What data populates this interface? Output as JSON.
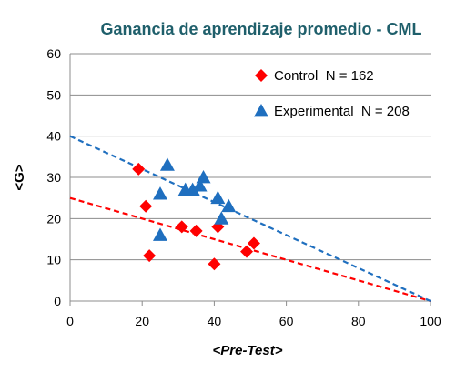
{
  "chart_data": {
    "type": "scatter",
    "title": "Ganancia de aprendizaje promedio - CML",
    "xlabel": "<Pre-Test>",
    "ylabel": "<G>",
    "xlim": [
      0,
      100
    ],
    "ylim": [
      0,
      60
    ],
    "xticks": [
      "0",
      "20",
      "40",
      "60",
      "80",
      "100"
    ],
    "yticks": [
      "0",
      "10",
      "20",
      "30",
      "40",
      "50",
      "60"
    ],
    "grid": "horizontal",
    "legend_position": "top-right",
    "series": [
      {
        "name": "Control",
        "legend_text": "Control  N = 162",
        "marker": "diamond",
        "color": "#ff0000",
        "points": [
          [
            19,
            32
          ],
          [
            21,
            23
          ],
          [
            22,
            11
          ],
          [
            31,
            18
          ],
          [
            35,
            17
          ],
          [
            40,
            9
          ],
          [
            41,
            18
          ],
          [
            49,
            12
          ],
          [
            51,
            14
          ]
        ],
        "trendline": {
          "x": [
            0,
            100
          ],
          "y": [
            25,
            0
          ],
          "color": "#ff0000"
        }
      },
      {
        "name": "Experimental",
        "legend_text": "Experimental  N = 208",
        "marker": "triangle",
        "color": "#1f6fbf",
        "points": [
          [
            25,
            16
          ],
          [
            25,
            26
          ],
          [
            27,
            33
          ],
          [
            32,
            27
          ],
          [
            34,
            27
          ],
          [
            36,
            28
          ],
          [
            37,
            30
          ],
          [
            41,
            25
          ],
          [
            42,
            20
          ],
          [
            44,
            23
          ]
        ],
        "trendline": {
          "x": [
            0,
            100
          ],
          "y": [
            40,
            0
          ],
          "color": "#1f6fbf"
        }
      }
    ]
  }
}
